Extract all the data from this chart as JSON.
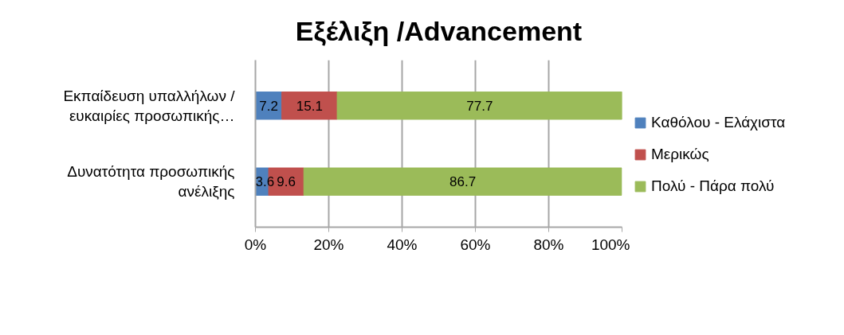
{
  "chart_data": {
    "type": "bar",
    "title": "Εξέλιξη /Advancement",
    "orientation": "horizontal",
    "stacked": true,
    "categories": [
      "Εκπαίδευση υπαλλήλων / ευκαιρίες προσωπικής…",
      "Δυνατότητα προσωπικής ανέλιξης"
    ],
    "series": [
      {
        "name": "Καθόλου - Ελάχιστα",
        "color": "#4f81bd",
        "values": [
          7.2,
          3.6
        ]
      },
      {
        "name": "Μερικώς",
        "color": "#c0504d",
        "values": [
          15.1,
          9.6
        ]
      },
      {
        "name": "Πολύ - Πάρα πολύ",
        "color": "#9bbb59",
        "values": [
          77.7,
          86.7
        ]
      }
    ],
    "xlim": [
      0,
      100
    ],
    "xticks": [
      {
        "value": 0,
        "label": "0%"
      },
      {
        "value": 20,
        "label": "20%"
      },
      {
        "value": 40,
        "label": "40%"
      },
      {
        "value": 60,
        "label": "60%"
      },
      {
        "value": 80,
        "label": "80%"
      },
      {
        "value": 100,
        "label": "100%"
      }
    ],
    "grid": "x",
    "legend": "right",
    "data_labels": true
  }
}
